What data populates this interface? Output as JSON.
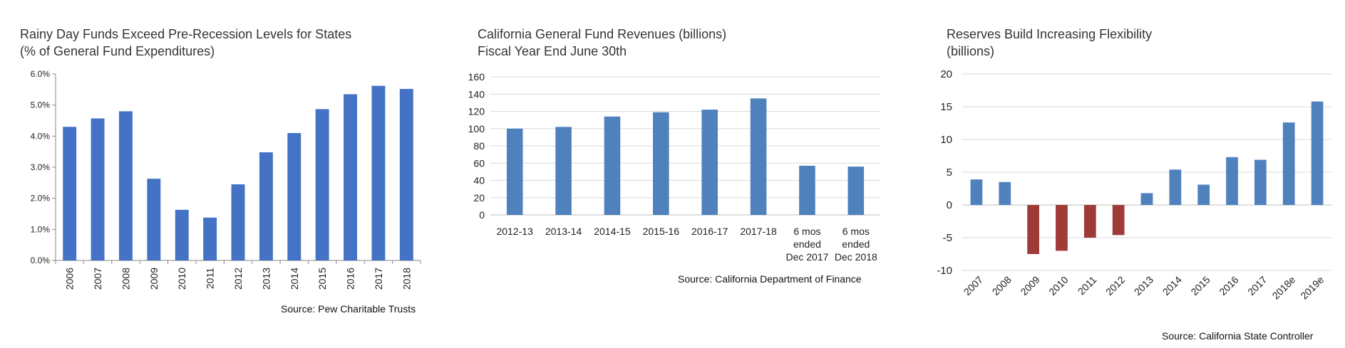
{
  "chart_data": [
    {
      "type": "bar",
      "title": "Rainy Day Funds Exceed Pre-Recession Levels for States",
      "subtitle": "(% of General Fund Expenditures)",
      "categories": [
        "2006",
        "2007",
        "2008",
        "2009",
        "2010",
        "2011",
        "2012",
        "2013",
        "2014",
        "2015",
        "2016",
        "2017",
        "2018"
      ],
      "values": [
        4.3,
        4.57,
        4.8,
        2.63,
        1.63,
        1.38,
        2.45,
        3.48,
        4.1,
        4.87,
        5.35,
        5.62,
        5.52
      ],
      "yticks": [
        "0.0%",
        "1.0%",
        "2.0%",
        "3.0%",
        "4.0%",
        "5.0%",
        "6.0%"
      ],
      "ylim": [
        0,
        6
      ],
      "color": "#4472c4",
      "grid": false,
      "source": "Source: Pew Charitable Trusts"
    },
    {
      "type": "bar",
      "title": "California General Fund Revenues (billions)",
      "subtitle": "Fiscal Year End June 30th",
      "categories": [
        [
          "2012-13"
        ],
        [
          "2013-14"
        ],
        [
          "2014-15"
        ],
        [
          "2015-16"
        ],
        [
          "2016-17"
        ],
        [
          "2017-18"
        ],
        [
          "6 mos",
          "ended",
          "Dec 2017"
        ],
        [
          "6 mos",
          "ended",
          "Dec 2018"
        ]
      ],
      "values": [
        100,
        102,
        114,
        119,
        122,
        135,
        57,
        56
      ],
      "yticks": [
        "0",
        "20",
        "40",
        "60",
        "80",
        "100",
        "120",
        "140",
        "160"
      ],
      "ylim": [
        0,
        160
      ],
      "color": "#4f81bd",
      "grid": true,
      "source": "Source:  California Department of Finance"
    },
    {
      "type": "bar",
      "title": "Reserves Build Increasing Flexibility",
      "subtitle": "(billions)",
      "categories": [
        "2007",
        "2008",
        "2009",
        "2010",
        "2011",
        "2012",
        "2013",
        "2014",
        "2015",
        "2016",
        "2017",
        "2018e",
        "2019e"
      ],
      "values": [
        3.9,
        3.5,
        -7.5,
        -7.0,
        -5.0,
        -4.6,
        1.8,
        5.4,
        3.1,
        7.3,
        6.9,
        12.6,
        15.8
      ],
      "yticks": [
        "-10",
        "-5",
        "0",
        "5",
        "10",
        "15",
        "20"
      ],
      "ylim": [
        -10,
        20
      ],
      "positive_color": "#4f81bd",
      "negative_color": "#9e3a38",
      "grid": true,
      "source": "Source: California State Controller"
    }
  ]
}
